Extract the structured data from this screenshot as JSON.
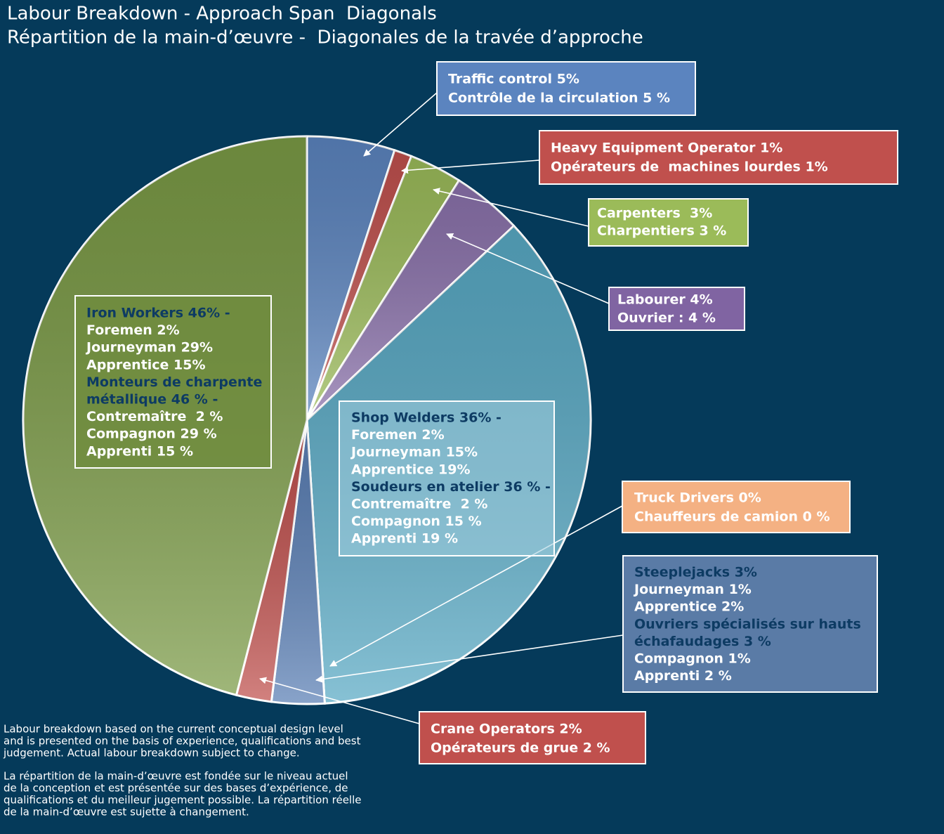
{
  "chart_data": {
    "type": "pie",
    "title": [
      "Labour Breakdown - Approach Span  Diagonals",
      "Répartition de la main-d’œuvre -  Diagonales de la travée d’approche"
    ],
    "values": [
      5,
      1,
      3,
      4,
      36,
      0,
      3,
      2,
      46
    ],
    "colors": [
      "#5b84bf",
      "#c0504d",
      "#9bbb59",
      "#8a71ab",
      "#58a9c4",
      "#f4b183",
      "#5a7fb5",
      "#c0504d",
      "#7a9a45"
    ],
    "labels": [
      [
        "Traffic control 5%",
        "Contrôle de la circulation 5 %"
      ],
      [
        "Heavy Equipment Operator 1%",
        "Opérateurs de  machines lourdes 1%"
      ],
      [
        "Carpenters  3%",
        "Charpentiers 3 %"
      ],
      [
        "Labourer 4%",
        "Ouvrier : 4 %"
      ],
      [
        {
          "text": "Shop Welders 36% -",
          "color": "#0d3b63"
        },
        "Foremen 2%",
        "Journeyman 15%",
        "Apprentice 19%",
        {
          "text": "Soudeurs en atelier 36 % -",
          "color": "#0d3b63"
        },
        "Contremaître  2 %",
        "Compagnon 15 %",
        "Apprenti 19 %"
      ],
      [
        "Truck Drivers 0%",
        "Chauffeurs de camion 0 %"
      ],
      [
        {
          "text": "Steeplejacks 3%",
          "color": "#0d3b63"
        },
        "Journeyman 1%",
        "Apprentice 2%",
        {
          "text": "Ouvriers spécialisés sur hauts",
          "color": "#0d3b63"
        },
        {
          "text": "échafaudages 3 %",
          "color": "#0d3b63"
        },
        "Compagnon 1%",
        "Apprenti 2 %"
      ],
      [
        "Crane Operators 2%",
        "Opérateurs de grue 2 %"
      ],
      [
        {
          "text": "Iron Workers 46% -",
          "color": "#0d3b63"
        },
        "Foremen 2%",
        "Journeyman 29%",
        "Apprentice 15%",
        {
          "text": "Monteurs de charpente",
          "color": "#0d3b63"
        },
        {
          "text": "métallique 46 % -",
          "color": "#0d3b63"
        },
        "Contremaître  2 %",
        "Compagnon 29 %",
        "Apprenti 15 %"
      ]
    ],
    "notes": [
      [
        "Labour breakdown based on the current conceptual design level",
        "and is presented on the basis of experience, qualifications and best",
        "judgement. Actual labour breakdown subject to change."
      ],
      [
        "La répartition de la main-d’œuvre est fondée sur le niveau actuel",
        "de la conception et est présentée sur des bases d’expérience, de",
        "qualifications et du meilleur jugement possible. La répartition réelle",
        "de la main-d’œuvre est sujette à changement."
      ]
    ]
  }
}
